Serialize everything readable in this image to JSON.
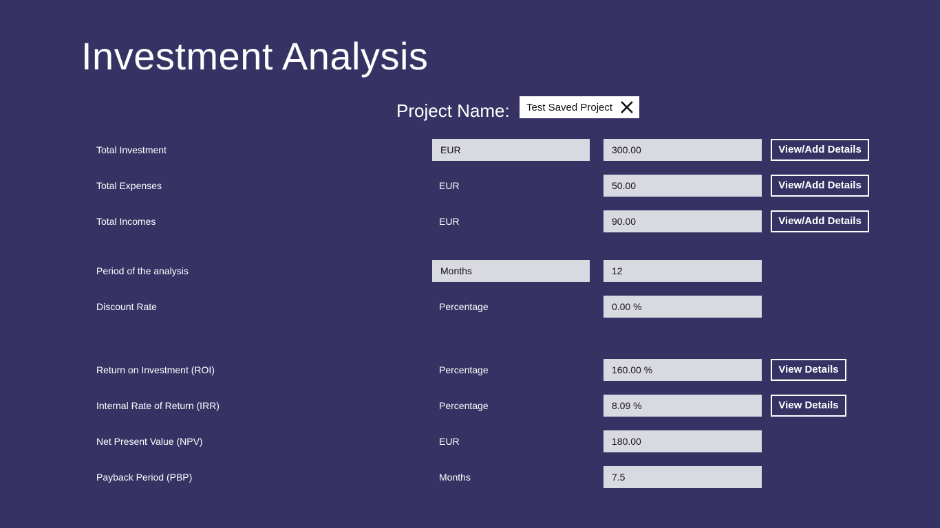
{
  "header": {
    "title": "Investment Analysis"
  },
  "project": {
    "label": "Project Name:",
    "value": "Test Saved Project"
  },
  "inputs": [
    {
      "label": "Total Investment",
      "unit": "EUR",
      "value": "300.00",
      "button": "View/Add Details"
    },
    {
      "label": "Total Expenses",
      "unit": "EUR",
      "value": "50.00",
      "button": "View/Add Details"
    },
    {
      "label": "Total Incomes",
      "unit": "EUR",
      "value": "90.00",
      "button": "View/Add Details"
    },
    {
      "label": "Period of the analysis",
      "unit": "Months",
      "value": "12"
    },
    {
      "label": "Discount Rate",
      "unit": "Percentage",
      "value": "0.00 %"
    }
  ],
  "results": [
    {
      "label": "Return on Investment (ROI)",
      "unit": "Percentage",
      "value": "160.00 %",
      "button": "View Details"
    },
    {
      "label": "Internal Rate of Return (IRR)",
      "unit": "Percentage",
      "value": "8.09 %",
      "button": "View Details"
    },
    {
      "label": "Net Present Value (NPV)",
      "unit": "EUR",
      "value": "180.00"
    },
    {
      "label": "Payback Period (PBP)",
      "unit": "Months",
      "value": "7.5"
    }
  ],
  "icons": {
    "clear": "close-icon"
  },
  "colors": {
    "background": "#363264",
    "field": "#d9d9e2",
    "text": "#ffffff"
  }
}
